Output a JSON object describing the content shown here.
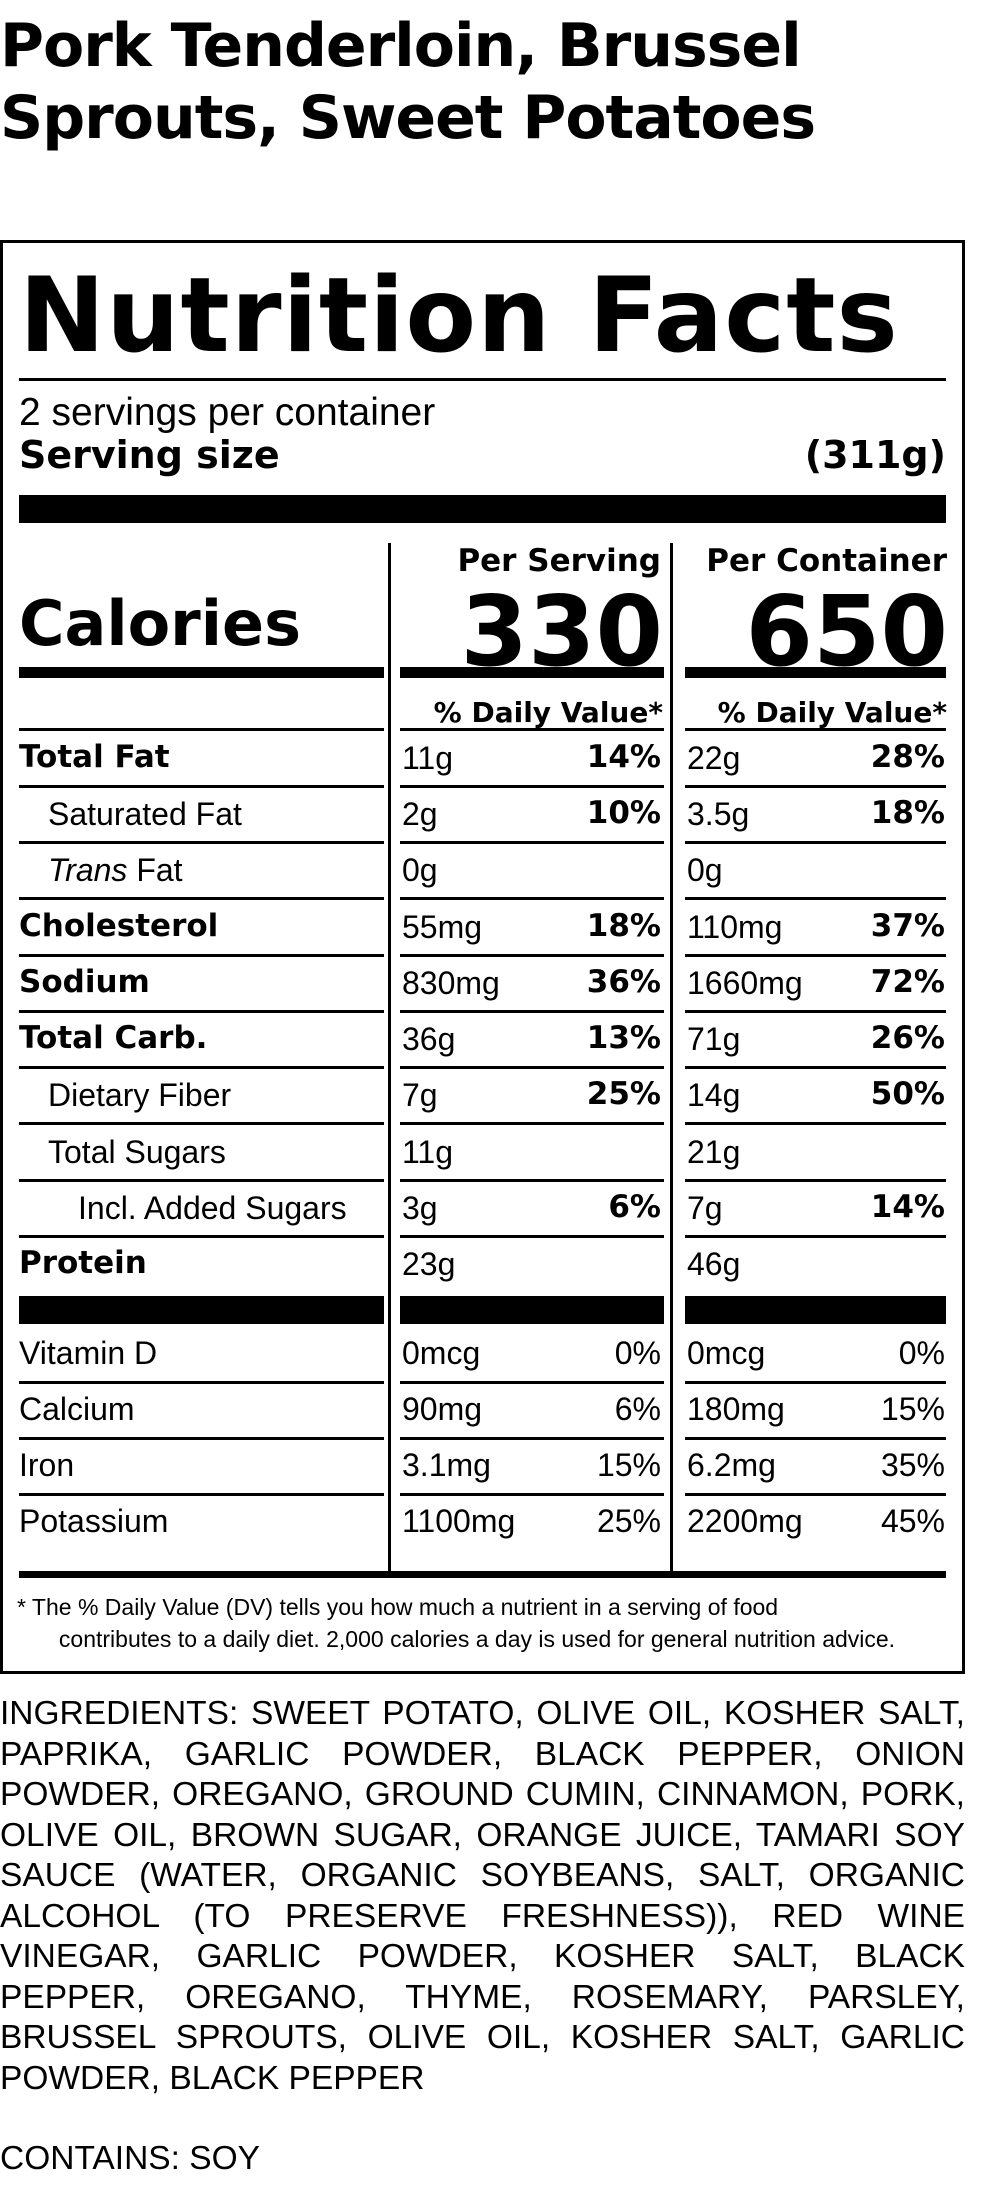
{
  "product": {
    "title_line1": "Pork Tenderloin, Brussel",
    "title_line2": "Sprouts, Sweet Potatoes"
  },
  "label": {
    "heading": "Nutrition Facts",
    "servings_per_container": "2 servings per container",
    "serving_size_label": "Serving size",
    "serving_size_value": "(311g)",
    "per_serving_header": "Per Serving",
    "per_container_header": "Per Container",
    "calories_label": "Calories",
    "calories_per_serving": "330",
    "calories_per_container": "650",
    "daily_value_header": "% Daily Value*"
  },
  "nutrients": [
    {
      "name": "Total Fat",
      "style": "bold",
      "indent": 0,
      "serving_amount": "11g",
      "serving_dv": "14%",
      "container_amount": "22g",
      "container_dv": "28%"
    },
    {
      "name": "Saturated Fat",
      "style": "normal",
      "indent": 1,
      "serving_amount": "2g",
      "serving_dv": "10%",
      "container_amount": "3.5g",
      "container_dv": "18%"
    },
    {
      "name_italic": "Trans",
      "name_rest": " Fat",
      "style": "normal",
      "indent": 1,
      "serving_amount": "0g",
      "serving_dv": "",
      "container_amount": "0g",
      "container_dv": ""
    },
    {
      "name": "Cholesterol",
      "style": "bold",
      "indent": 0,
      "serving_amount": "55mg",
      "serving_dv": "18%",
      "container_amount": "110mg",
      "container_dv": "37%"
    },
    {
      "name": "Sodium",
      "style": "bold",
      "indent": 0,
      "serving_amount": "830mg",
      "serving_dv": "36%",
      "container_amount": "1660mg",
      "container_dv": "72%"
    },
    {
      "name": "Total Carb.",
      "style": "bold",
      "indent": 0,
      "serving_amount": "36g",
      "serving_dv": "13%",
      "container_amount": "71g",
      "container_dv": "26%"
    },
    {
      "name": "Dietary Fiber",
      "style": "normal",
      "indent": 1,
      "serving_amount": "7g",
      "serving_dv": "25%",
      "container_amount": "14g",
      "container_dv": "50%"
    },
    {
      "name": "Total Sugars",
      "style": "normal",
      "indent": 1,
      "serving_amount": "11g",
      "serving_dv": "",
      "container_amount": "21g",
      "container_dv": ""
    },
    {
      "name": "Incl. Added Sugars",
      "style": "normal",
      "indent": 2,
      "serving_amount": "3g",
      "serving_dv": "6%",
      "container_amount": "7g",
      "container_dv": "14%"
    },
    {
      "name": "Protein",
      "style": "bold",
      "indent": 0,
      "serving_amount": "23g",
      "serving_dv": "",
      "container_amount": "46g",
      "container_dv": ""
    }
  ],
  "vitamins": [
    {
      "name": "Vitamin D",
      "serving_amount": "0mcg",
      "serving_dv": "0%",
      "container_amount": "0mcg",
      "container_dv": "0%"
    },
    {
      "name": "Calcium",
      "serving_amount": "90mg",
      "serving_dv": "6%",
      "container_amount": "180mg",
      "container_dv": "15%"
    },
    {
      "name": "Iron",
      "serving_amount": "3.1mg",
      "serving_dv": "15%",
      "container_amount": "6.2mg",
      "container_dv": "35%"
    },
    {
      "name": "Potassium",
      "serving_amount": "1100mg",
      "serving_dv": "25%",
      "container_amount": "2200mg",
      "container_dv": "45%"
    }
  ],
  "footnote": {
    "line1": "* The % Daily Value (DV) tells you how much a nutrient in a serving of food",
    "line2": "contributes to a daily diet. 2,000 calories a day is used for general nutrition advice."
  },
  "ingredients": "INGREDIENTS: SWEET POTATO, OLIVE OIL, KOSHER SALT, PAPRIKA, GARLIC POWDER, BLACK PEPPER, ONION POWDER, OREGANO, GROUND CUMIN, CINNAMON, PORK, OLIVE OIL, BROWN SUGAR, ORANGE JUICE, TAMARI SOY SAUCE (WATER, ORGANIC SOYBEANS, SALT, ORGANIC ALCOHOL (TO PRESERVE FRESHNESS)), RED WINE VINEGAR, GARLIC POWDER, KOSHER SALT, BLACK PEPPER, OREGANO, THYME, ROSEMARY, PARSLEY, BRUSSEL SPROUTS, OLIVE OIL, KOSHER SALT, GARLIC POWDER, BLACK PEPPER",
  "contains": "CONTAINS: SOY"
}
